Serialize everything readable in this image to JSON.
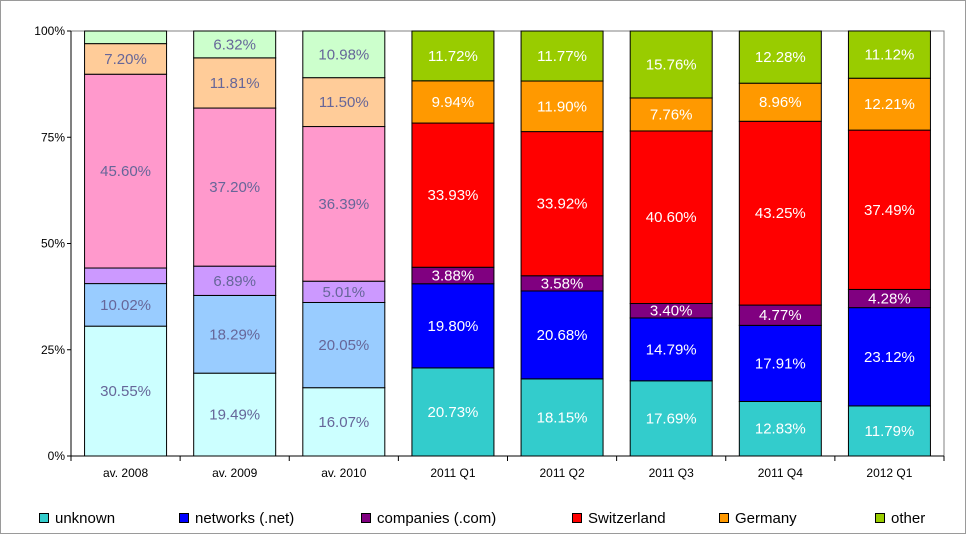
{
  "chart_data": {
    "type": "bar",
    "stacked": true,
    "percent": true,
    "categories": [
      "av. 2008",
      "av. 2009",
      "av. 2010",
      "2011 Q1",
      "2011 Q2",
      "2011 Q3",
      "2011 Q4",
      "2012 Q1"
    ],
    "y_ticks": [
      "0%",
      "25%",
      "50%",
      "75%",
      "100%"
    ],
    "ylim": [
      0,
      100
    ],
    "grid": false,
    "legend_position": "bottom",
    "series": [
      {
        "name": "unknown",
        "color": "#33cccc",
        "faded_color": "#ccffff",
        "values": [
          30.55,
          19.49,
          16.07,
          20.73,
          18.15,
          17.69,
          12.83,
          11.79
        ],
        "labels": [
          "30.55%",
          "19.49%",
          "16.07%",
          "20.73%",
          "18.15%",
          "17.69%",
          "12.83%",
          "11.79%"
        ]
      },
      {
        "name": "networks (.net)",
        "color": "#0000ff",
        "faded_color": "#99ccff",
        "values": [
          10.02,
          18.29,
          20.05,
          19.8,
          20.68,
          14.79,
          17.91,
          23.12
        ],
        "labels": [
          "10.02%",
          "18.29%",
          "20.05%",
          "19.80%",
          "20.68%",
          "14.79%",
          "17.91%",
          "23.12%"
        ]
      },
      {
        "name": "companies (.com)",
        "color": "#800080",
        "faded_color": "#cc99ff",
        "values": [
          3.66,
          6.89,
          5.01,
          3.88,
          3.58,
          3.4,
          4.77,
          4.28
        ],
        "labels": [
          "",
          "6.89%",
          "5.01%",
          "3.88%",
          "3.58%",
          "3.40%",
          "4.77%",
          "4.28%"
        ]
      },
      {
        "name": "Switzerland",
        "color": "#ff0000",
        "faded_color": "#ff99cc",
        "values": [
          45.6,
          37.2,
          36.39,
          33.93,
          33.92,
          40.6,
          43.25,
          37.49
        ],
        "labels": [
          "45.60%",
          "37.20%",
          "36.39%",
          "33.93%",
          "33.92%",
          "40.60%",
          "43.25%",
          "37.49%"
        ]
      },
      {
        "name": "Germany",
        "color": "#ff9900",
        "faded_color": "#ffcc99",
        "values": [
          7.2,
          11.81,
          11.5,
          9.94,
          11.9,
          7.76,
          8.96,
          12.21
        ],
        "labels": [
          "7.20%",
          "11.81%",
          "11.50%",
          "9.94%",
          "11.90%",
          "7.76%",
          "8.96%",
          "12.21%"
        ]
      },
      {
        "name": "other",
        "color": "#99cc00",
        "faded_color": "#ccffcc",
        "values": [
          2.97,
          6.32,
          10.98,
          11.72,
          11.77,
          15.76,
          12.28,
          11.12
        ],
        "labels": [
          "",
          "6.32%",
          "10.98%",
          "11.72%",
          "11.77%",
          "15.76%",
          "12.28%",
          "11.12%"
        ]
      }
    ],
    "faded_categories": 3
  }
}
